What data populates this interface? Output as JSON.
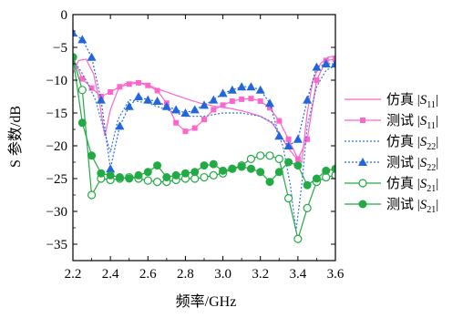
{
  "chart_data": {
    "type": "line",
    "xlabel": "频率/GHz",
    "ylabel": "S 参数/dB",
    "xlim": [
      2.2,
      3.6
    ],
    "ylim": [
      -37.5,
      0
    ],
    "xticks": [
      2.2,
      2.4,
      2.6,
      2.8,
      3.0,
      3.2,
      3.4,
      3.6
    ],
    "xtick_labels": [
      "2.2",
      "2.4",
      "2.6",
      "2.8",
      "3.0",
      "3.2",
      "3.4",
      "3.6"
    ],
    "yticks": [
      0,
      -5,
      -10,
      -15,
      -20,
      -25,
      -30,
      -35
    ],
    "ytick_labels": [
      "0",
      "−5",
      "−10",
      "−15",
      "−20",
      "−25",
      "−30",
      "−35"
    ],
    "grid": false,
    "legend_position": "right",
    "series": [
      {
        "name": "仿真 |S11|",
        "label_prefix": "仿真",
        "sub": "11",
        "color": "#ff66cc",
        "dash": "solid",
        "marker": "none",
        "x": [
          2.2,
          2.23,
          2.27,
          2.31,
          2.34,
          2.37,
          2.4,
          2.44,
          2.48,
          2.52,
          2.58,
          2.65,
          2.72,
          2.8,
          2.88,
          2.96,
          3.04,
          3.12,
          3.2,
          3.26,
          3.3,
          3.34,
          3.38,
          3.42,
          3.45,
          3.48,
          3.52,
          3.56,
          3.6
        ],
        "y": [
          -9.0,
          -7.0,
          -6.8,
          -9.0,
          -13.0,
          -18.5,
          -14.5,
          -11.5,
          -10.5,
          -10.3,
          -10.5,
          -11.3,
          -12.0,
          -12.8,
          -13.5,
          -14.0,
          -14.3,
          -14.8,
          -15.5,
          -16.5,
          -18.0,
          -20.0,
          -21.5,
          -22.5,
          -15.0,
          -10.0,
          -7.5,
          -6.5,
          -6.3
        ]
      },
      {
        "name": "测试 |S11|",
        "label_prefix": "测试",
        "sub": "11",
        "color": "#ff66cc",
        "dash": "solid",
        "marker": "square",
        "x": [
          2.2,
          2.25,
          2.3,
          2.35,
          2.4,
          2.45,
          2.5,
          2.55,
          2.6,
          2.65,
          2.7,
          2.75,
          2.8,
          2.85,
          2.9,
          2.95,
          3.0,
          3.05,
          3.1,
          3.15,
          3.2,
          3.25,
          3.3,
          3.35,
          3.4,
          3.45,
          3.5,
          3.55,
          3.6
        ],
        "y": [
          -6.5,
          -9.8,
          -11.2,
          -12.5,
          -11.8,
          -11.0,
          -10.6,
          -10.4,
          -10.8,
          -11.6,
          -13.5,
          -16.5,
          -17.8,
          -17.3,
          -16.0,
          -14.5,
          -13.8,
          -13.2,
          -12.9,
          -12.8,
          -13.2,
          -14.2,
          -16.2,
          -19.0,
          -22.0,
          -19.0,
          -10.0,
          -7.0,
          -6.8
        ]
      },
      {
        "name": "仿真 |S22|",
        "label_prefix": "仿真",
        "sub": "22",
        "color": "#3377dd",
        "dash": "dotted",
        "marker": "none",
        "x": [
          2.2,
          2.24,
          2.28,
          2.32,
          2.36,
          2.4,
          2.44,
          2.5,
          2.6,
          2.7,
          2.8,
          2.9,
          3.0,
          3.1,
          3.2,
          3.27,
          3.32,
          3.36,
          3.39,
          3.42,
          3.45,
          3.5,
          3.55,
          3.6
        ],
        "y": [
          -7.0,
          -8.5,
          -10.5,
          -13.0,
          -17.0,
          -21.0,
          -16.0,
          -13.0,
          -13.5,
          -14.5,
          -15.5,
          -15.5,
          -15.0,
          -15.0,
          -15.5,
          -16.5,
          -20.0,
          -26.0,
          -33.0,
          -26.0,
          -17.0,
          -11.0,
          -8.5,
          -7.8
        ]
      },
      {
        "name": "测试 |S22|",
        "label_prefix": "测试",
        "sub": "22",
        "color": "#2266dd",
        "dash": "dotted",
        "marker": "triangle",
        "x": [
          2.2,
          2.25,
          2.3,
          2.35,
          2.4,
          2.45,
          2.5,
          2.55,
          2.6,
          2.65,
          2.7,
          2.75,
          2.8,
          2.85,
          2.9,
          2.95,
          3.0,
          3.05,
          3.1,
          3.15,
          3.2,
          3.25,
          3.3,
          3.35,
          3.4,
          3.45,
          3.5,
          3.55,
          3.6
        ],
        "y": [
          -2.8,
          -3.8,
          -6.5,
          -13.0,
          -23.5,
          -17.0,
          -14.0,
          -12.5,
          -13.0,
          -13.2,
          -14.0,
          -14.5,
          -15.0,
          -14.5,
          -13.8,
          -13.0,
          -12.0,
          -11.5,
          -11.0,
          -11.0,
          -11.5,
          -13.5,
          -18.5,
          -20.0,
          -19.0,
          -13.0,
          -8.0,
          -7.5,
          -7.5
        ]
      },
      {
        "name": "仿真 |S21|",
        "label_prefix": "仿真",
        "sub": "21",
        "color": "#22aa44",
        "dash": "solid",
        "marker": "circle-open",
        "x": [
          2.2,
          2.25,
          2.3,
          2.35,
          2.4,
          2.45,
          2.5,
          2.55,
          2.6,
          2.65,
          2.7,
          2.75,
          2.8,
          2.85,
          2.9,
          2.95,
          3.0,
          3.05,
          3.1,
          3.15,
          3.2,
          3.25,
          3.3,
          3.35,
          3.4,
          3.45,
          3.5,
          3.55,
          3.6
        ],
        "y": [
          -6.5,
          -11.5,
          -27.5,
          -25.0,
          -25.2,
          -25.0,
          -24.8,
          -25.0,
          -25.3,
          -25.5,
          -25.5,
          -25.2,
          -25.0,
          -25.0,
          -24.8,
          -24.5,
          -24.2,
          -23.5,
          -23.0,
          -22.0,
          -21.5,
          -21.5,
          -22.0,
          -28.0,
          -34.2,
          -29.5,
          -25.5,
          -24.8,
          -24.5
        ]
      },
      {
        "name": "测试 |S21|",
        "label_prefix": "测试",
        "sub": "21",
        "color": "#22aa44",
        "dash": "solid",
        "marker": "circle-filled",
        "x": [
          2.2,
          2.25,
          2.3,
          2.35,
          2.4,
          2.45,
          2.5,
          2.55,
          2.6,
          2.65,
          2.7,
          2.75,
          2.8,
          2.85,
          2.9,
          2.95,
          3.0,
          3.05,
          3.1,
          3.15,
          3.2,
          3.25,
          3.3,
          3.35,
          3.4,
          3.45,
          3.5,
          3.55,
          3.6
        ],
        "y": [
          -6.5,
          -16.5,
          -21.5,
          -24.2,
          -24.5,
          -24.8,
          -25.0,
          -24.5,
          -24.0,
          -23.0,
          -24.8,
          -24.5,
          -24.2,
          -24.0,
          -23.0,
          -22.8,
          -23.8,
          -23.5,
          -23.2,
          -23.5,
          -24.0,
          -25.5,
          -24.0,
          -22.5,
          -23.0,
          -26.0,
          -25.0,
          -23.8,
          -23.5
        ]
      }
    ]
  }
}
